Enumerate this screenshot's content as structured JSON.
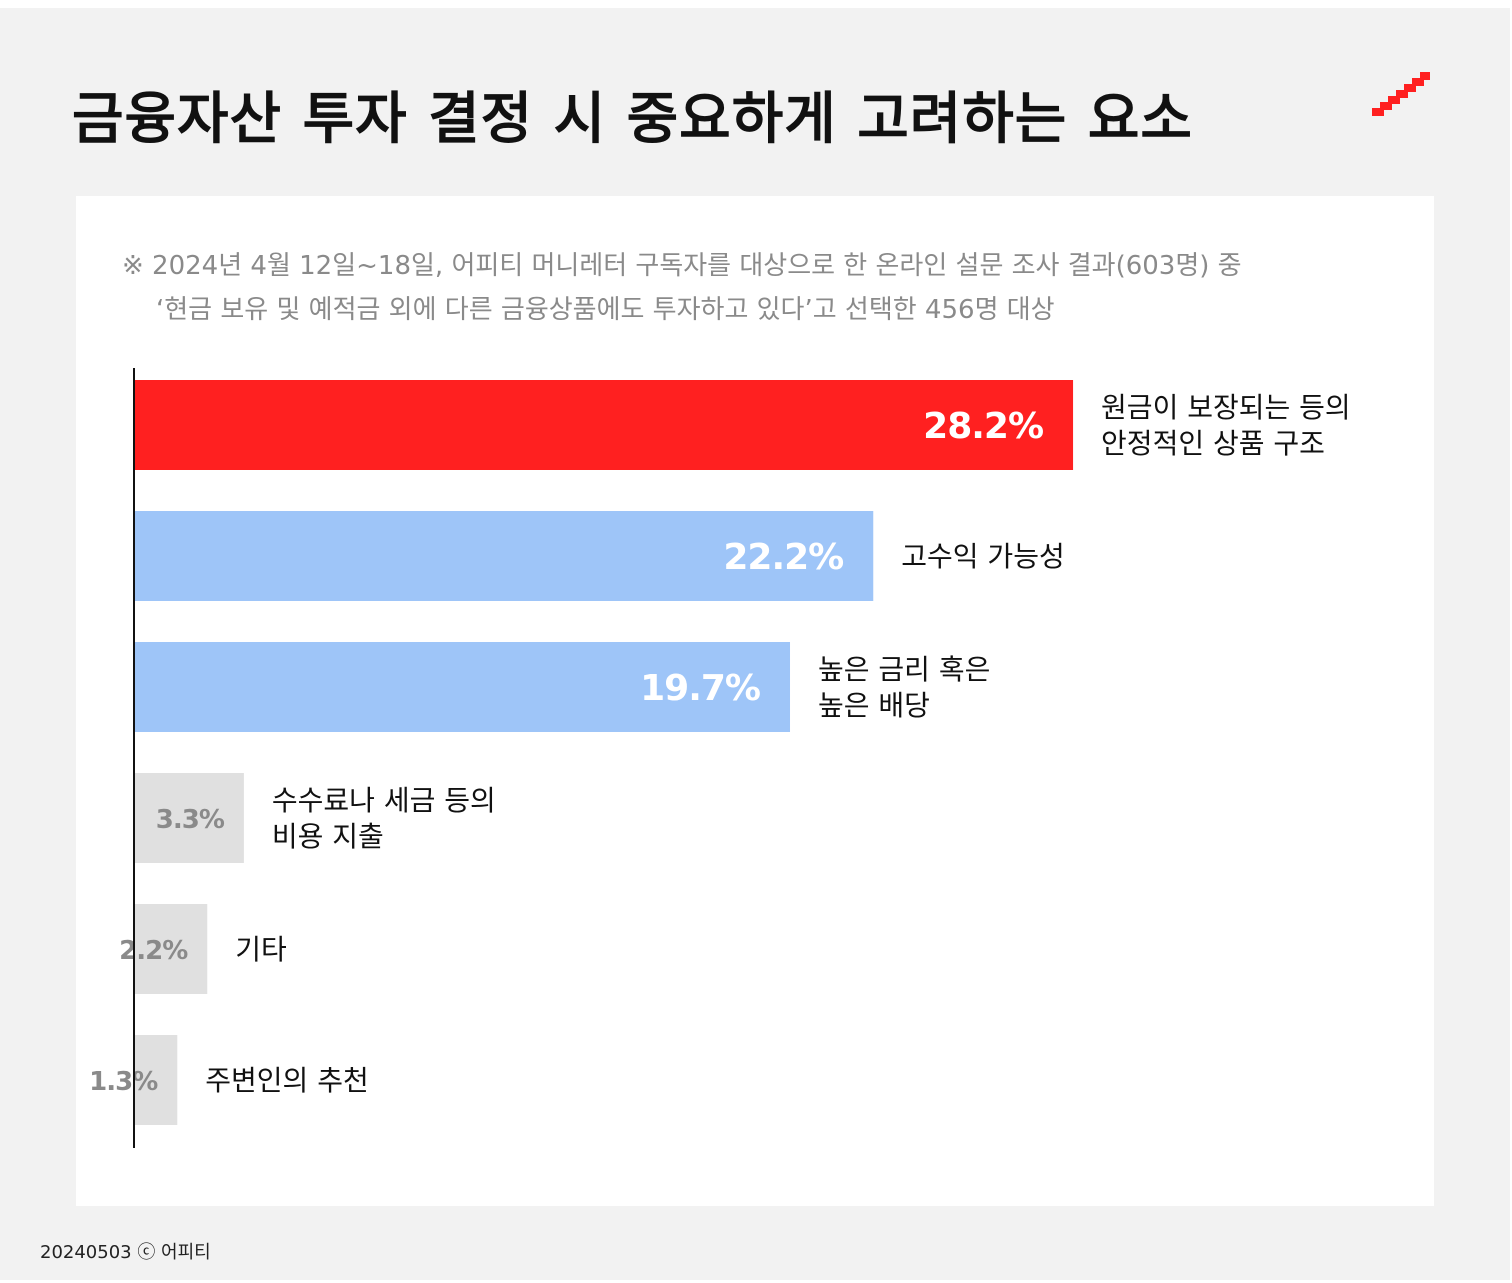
{
  "title": "금융자산 투자 결정 시 중요하게 고려하는 요소",
  "logo_icon": "stair-step-logo-icon",
  "note": {
    "line1": "※ 2024년 4월 12일~18일, 어피티 머니레터 구독자를 대상으로 한 온라인 설문 조사 결과(603명) 중",
    "line2": "‘현금 보유 및 예적금 외에 다른 금융상품에도 투자하고 있다’고 선택한 456명 대상"
  },
  "footer": "20240503 ⓒ 어피티",
  "colors": {
    "accent": "#ff2020",
    "secondary": "#9ec5f8",
    "muted": "#e0e0e0",
    "muted_text": "#8a8a8a"
  },
  "chart_data": {
    "type": "bar",
    "orientation": "horizontal",
    "categories": [
      [
        "원금이 보장되는 등의",
        "안정적인 상품 구조"
      ],
      [
        "고수익 가능성"
      ],
      [
        "높은 금리 혹은",
        "높은 배당"
      ],
      [
        "수수료나 세금 등의",
        "비용 지출"
      ],
      [
        "기타"
      ],
      [
        "주변인의 추천"
      ]
    ],
    "values": [
      28.2,
      22.2,
      19.7,
      3.3,
      2.2,
      1.3
    ],
    "value_labels": [
      "28.2%",
      "22.2%",
      "19.7%",
      "3.3%",
      "2.2%",
      "1.3%"
    ],
    "bar_colors": [
      "#ff2020",
      "#9ec5f8",
      "#9ec5f8",
      "#e0e0e0",
      "#e0e0e0",
      "#e0e0e0"
    ],
    "label_colors": [
      "#ffffff",
      "#ffffff",
      "#ffffff",
      "#8a8a8a",
      "#8a8a8a",
      "#8a8a8a"
    ],
    "grid": false,
    "legend": "none"
  }
}
